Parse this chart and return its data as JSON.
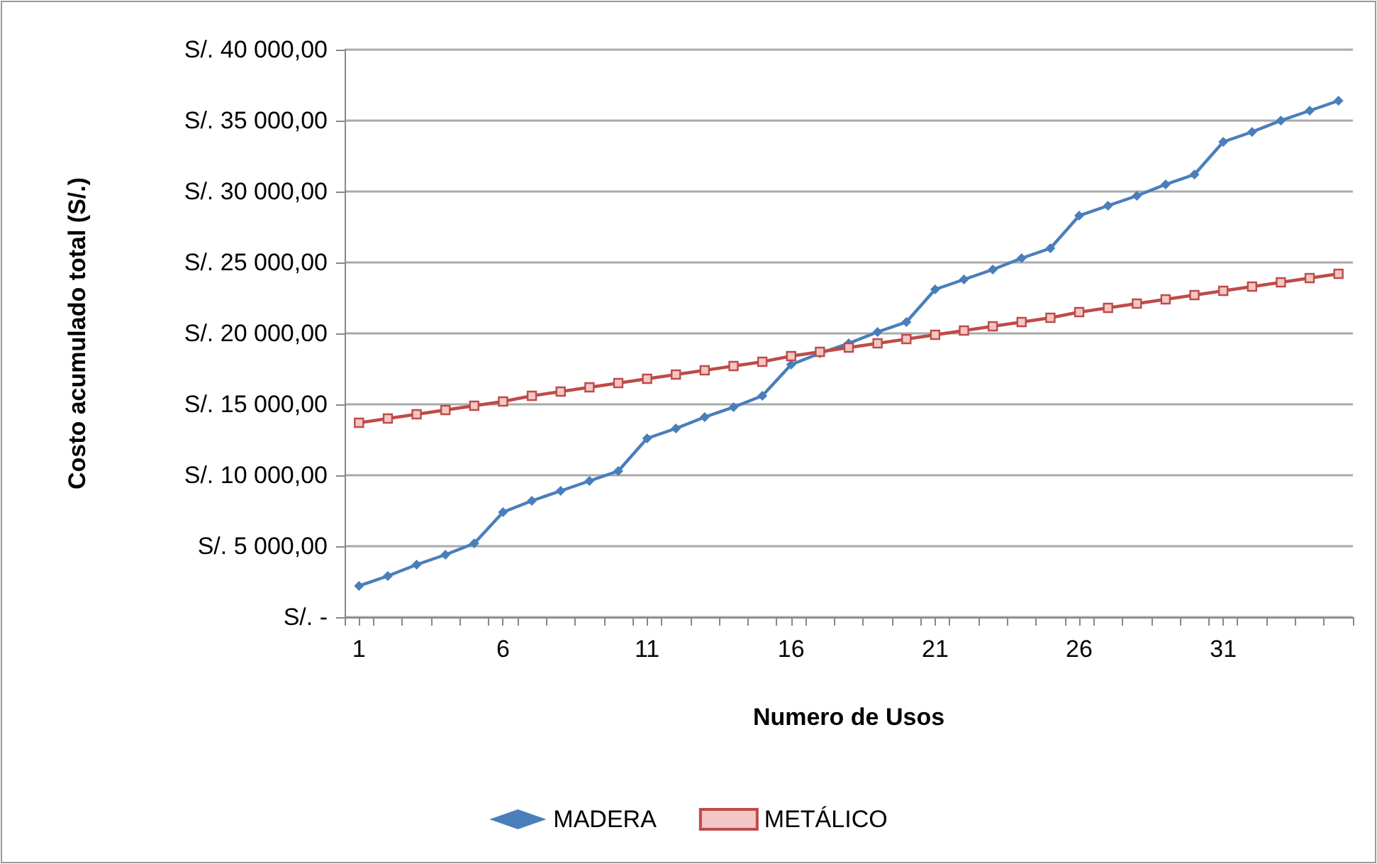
{
  "chart_data": {
    "type": "line",
    "xlabel": "Numero de Usos",
    "ylabel": "Costo acumulado total (S/.)",
    "x": [
      1,
      2,
      3,
      4,
      5,
      6,
      7,
      8,
      9,
      10,
      11,
      12,
      13,
      14,
      15,
      16,
      17,
      18,
      19,
      20,
      21,
      22,
      23,
      24,
      25,
      26,
      27,
      28,
      29,
      30,
      31,
      32,
      33,
      34,
      35
    ],
    "xlim": [
      0.5,
      35.5
    ],
    "xticks": [
      1,
      6,
      11,
      16,
      21,
      26,
      31,
      {
        "value": 0.5,
        "label": null
      },
      {
        "value": 1.5,
        "label": null
      },
      {
        "value": 2.5,
        "label": null
      },
      {
        "value": 3.5,
        "label": null
      },
      {
        "value": 4.5,
        "label": null
      },
      {
        "value": 5.5,
        "label": null
      },
      {
        "value": 6.5,
        "label": null
      },
      {
        "value": 7.5,
        "label": null
      },
      {
        "value": 8.5,
        "label": null
      },
      {
        "value": 9.5,
        "label": null
      },
      {
        "value": 10.5,
        "label": null
      },
      {
        "value": 11.5,
        "label": null
      },
      {
        "value": 12.5,
        "label": null
      },
      {
        "value": 13.5,
        "label": null
      },
      {
        "value": 14.5,
        "label": null
      },
      {
        "value": 15.5,
        "label": null
      },
      {
        "value": 16.5,
        "label": null
      },
      {
        "value": 17.5,
        "label": null
      },
      {
        "value": 18.5,
        "label": null
      },
      {
        "value": 19.5,
        "label": null
      },
      {
        "value": 20.5,
        "label": null
      },
      {
        "value": 21.5,
        "label": null
      },
      {
        "value": 22.5,
        "label": null
      },
      {
        "value": 23.5,
        "label": null
      },
      {
        "value": 24.5,
        "label": null
      },
      {
        "value": 25.5,
        "label": null
      },
      {
        "value": 26.5,
        "label": null
      },
      {
        "value": 27.5,
        "label": null
      },
      {
        "value": 28.5,
        "label": null
      },
      {
        "value": 29.5,
        "label": null
      },
      {
        "value": 30.5,
        "label": null
      },
      {
        "value": 31.5,
        "label": null
      },
      {
        "value": 32.5,
        "label": null
      },
      {
        "value": 33.5,
        "label": null
      },
      {
        "value": 34.5,
        "label": null
      },
      {
        "value": 35.5,
        "label": null
      }
    ],
    "series": [
      {
        "name": "MADERA",
        "color": "#4a7ebb",
        "marker": "diamond",
        "values": [
          2200,
          2900,
          3700,
          4400,
          5200,
          7400,
          8200,
          8900,
          9600,
          10300,
          12600,
          13300,
          14100,
          14800,
          15600,
          17800,
          18600,
          19300,
          20100,
          20800,
          23100,
          23800,
          24500,
          25300,
          26000,
          28300,
          29000,
          29700,
          30500,
          31200,
          33500,
          34200,
          35000,
          35700,
          36400
        ]
      },
      {
        "name": "METÁLICO",
        "color": "#be4b48",
        "marker": "square",
        "values": [
          13700,
          14000,
          14300,
          14600,
          14900,
          15200,
          15600,
          15900,
          16200,
          16500,
          16800,
          17100,
          17400,
          17700,
          18000,
          18400,
          18700,
          19000,
          19300,
          19600,
          19900,
          20200,
          20500,
          20800,
          21100,
          21500,
          21800,
          22100,
          22400,
          22700,
          23000,
          23300,
          23600,
          23900,
          24200
        ]
      }
    ],
    "ylim": [
      0,
      40000
    ],
    "yticks": [
      {
        "value": 0,
        "label": "S/. -"
      },
      {
        "value": 5000,
        "label": "S/. 5 000,00"
      },
      {
        "value": 10000,
        "label": "S/. 10 000,00"
      },
      {
        "value": 15000,
        "label": "S/. 15 000,00"
      },
      {
        "value": 20000,
        "label": "S/. 20 000,00"
      },
      {
        "value": 25000,
        "label": "S/. 25 000,00"
      },
      {
        "value": 30000,
        "label": "S/. 30 000,00"
      },
      {
        "value": 35000,
        "label": "S/. 35 000,00"
      },
      {
        "value": 40000,
        "label": "S/. 40 000,00"
      }
    ],
    "grid": "y",
    "legend": "bottom",
    "line_style": "solid"
  }
}
